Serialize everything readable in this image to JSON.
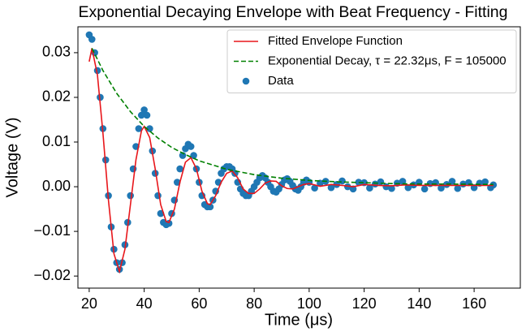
{
  "chart_data": {
    "type": "line",
    "title": "Exponential Decaying Envelope with Beat Frequency - Fitting",
    "x_label": "Time (μs)",
    "y_label": "Voltage (V)",
    "xlim": [
      15.9,
      176.8
    ],
    "ylim": [
      -0.0227,
      0.0358
    ],
    "xticks": [
      20,
      40,
      60,
      80,
      100,
      120,
      140,
      160
    ],
    "yticks": [
      {
        "value": -0.02,
        "label": "−0.02"
      },
      {
        "value": -0.01,
        "label": "−0.01"
      },
      {
        "value": 0,
        "label": "0.00"
      },
      0.01,
      0.02,
      0.03
    ],
    "legend": "upper right",
    "series": [
      {
        "name": "Fitted Envelope Function",
        "type": "line",
        "color": "#e8161b",
        "dash": false,
        "x": [
          20,
          21,
          23,
          25,
          27,
          29,
          31,
          33,
          35,
          37,
          39,
          40,
          42,
          44,
          46,
          48,
          49,
          51,
          53,
          55,
          57,
          59,
          61,
          63,
          64,
          66,
          68,
          70,
          72,
          74,
          76,
          78,
          80,
          82,
          84,
          86,
          88,
          90,
          92,
          94,
          96,
          98,
          100,
          104,
          108,
          112,
          116,
          120,
          125,
          130,
          135,
          140,
          150,
          160,
          167
        ],
        "values": [
          0.028,
          0.031,
          0.025,
          0.012,
          -0.003,
          -0.015,
          -0.019,
          -0.014,
          -0.004,
          0.006,
          0.0125,
          0.0135,
          0.011,
          0.004,
          -0.004,
          -0.0078,
          -0.008,
          -0.005,
          0.001,
          0.0055,
          0.0065,
          0.004,
          -0.001,
          -0.0038,
          -0.004,
          -0.002,
          0.001,
          0.003,
          0.0035,
          0.002,
          -0.0005,
          -0.0015,
          -0.0015,
          -0.0005,
          0.0008,
          0.0013,
          0.0012,
          0.0002,
          -0.0004,
          -0.0005,
          0.0,
          0.0005,
          0.0007,
          0.0001,
          0.0005,
          0.0003,
          0.0,
          0.0005,
          0.0003,
          0.0002,
          0.0004,
          0.0003,
          0.0003,
          0.0003,
          0.0003
        ]
      },
      {
        "name": "Exponential Decay, τ = 22.32μs, F = 105000",
        "type": "line",
        "color": "#008000",
        "dash": true,
        "x": [
          21,
          25,
          30,
          35,
          40,
          45,
          50,
          55,
          60,
          70,
          80,
          90,
          100,
          110,
          120,
          130,
          140,
          150,
          167
        ],
        "values": [
          0.031,
          0.026,
          0.0209,
          0.0168,
          0.0135,
          0.0109,
          0.0088,
          0.0072,
          0.0058,
          0.0039,
          0.0027,
          0.0019,
          0.0014,
          0.0011,
          0.0009,
          0.0007,
          0.0006,
          0.0006,
          0.0005
        ]
      },
      {
        "name": "Data",
        "type": "scatter",
        "color": "#1f77b4",
        "x": [
          20,
          21,
          22,
          23,
          24,
          25,
          26,
          27,
          28,
          29,
          30,
          31,
          32,
          33,
          34,
          35,
          36,
          37,
          38,
          39,
          40,
          41,
          42,
          43,
          44,
          45,
          46,
          47,
          48,
          49,
          50,
          51,
          52,
          53,
          54,
          55,
          56,
          57,
          58,
          59,
          60,
          61,
          62,
          63,
          64,
          65,
          66,
          67,
          68,
          69,
          70,
          71,
          72,
          73,
          74,
          75,
          76,
          77,
          78,
          79,
          80,
          81,
          82,
          83,
          84,
          85,
          86,
          87,
          88,
          89,
          90,
          91,
          92,
          93,
          94,
          95,
          96,
          97,
          98,
          99,
          100,
          102,
          104,
          106,
          108,
          110,
          112,
          114,
          116,
          118,
          120,
          122,
          124,
          126,
          128,
          130,
          132,
          134,
          136,
          138,
          140,
          142,
          144,
          146,
          148,
          150,
          152,
          154,
          156,
          158,
          160,
          162,
          164,
          166,
          167
        ],
        "values": [
          0.034,
          0.033,
          0.03,
          0.026,
          0.02,
          0.013,
          0.006,
          -0.002,
          -0.009,
          -0.014,
          -0.017,
          -0.0185,
          -0.017,
          -0.013,
          -0.008,
          -0.002,
          0.004,
          0.009,
          0.013,
          0.016,
          0.0172,
          0.016,
          0.013,
          0.008,
          0.003,
          -0.002,
          -0.006,
          -0.008,
          -0.0085,
          -0.0082,
          -0.006,
          -0.003,
          0.001,
          0.004,
          0.007,
          0.0085,
          0.0095,
          0.009,
          0.007,
          0.004,
          0.001,
          -0.002,
          -0.004,
          -0.0045,
          -0.0045,
          -0.003,
          -0.001,
          0.001,
          0.003,
          0.004,
          0.0045,
          0.0045,
          0.004,
          0.003,
          0.001,
          -0.0005,
          -0.0015,
          -0.002,
          -0.002,
          -0.001,
          0.0,
          0.001,
          0.002,
          0.0025,
          0.002,
          0.001,
          0.0,
          -0.001,
          -0.0012,
          -0.0005,
          0.0005,
          0.0015,
          0.0018,
          0.0012,
          0.0003,
          -0.0005,
          -0.0008,
          0.0,
          0.001,
          0.0015,
          0.001,
          -0.0003,
          0.0008,
          0.0012,
          -0.0002,
          0.0005,
          0.0013,
          0.0,
          -0.0005,
          0.001,
          0.0009,
          -0.0003,
          0.0006,
          0.0011,
          0.0,
          -0.0004,
          0.0008,
          0.0012,
          -0.0002,
          0.0004,
          0.001,
          -0.0005,
          0.0007,
          0.0009,
          -0.0003,
          0.0005,
          0.0012,
          -0.0004,
          0.0006,
          0.0009,
          -0.0002,
          0.0008,
          0.0011,
          -0.0002,
          0.0004
        ]
      }
    ]
  }
}
